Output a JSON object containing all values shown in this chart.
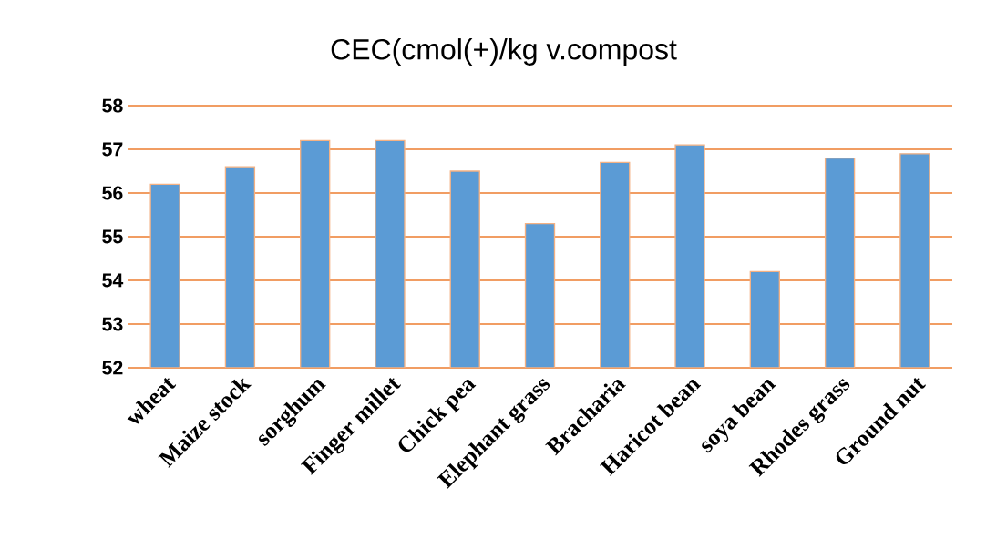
{
  "chart_data": {
    "type": "bar",
    "title": "CEC(cmol(+)/kg v.compost",
    "categories": [
      "wheat",
      "Maize stock",
      "sorghum",
      "Finger millet",
      "Chick pea",
      "Elephant grass",
      "Bracharia",
      "Haricot bean",
      "soya bean",
      "Rhodes grass",
      "Ground nut"
    ],
    "values": [
      56.2,
      56.6,
      57.2,
      57.2,
      56.5,
      55.3,
      56.7,
      57.1,
      54.2,
      56.8,
      56.9
    ],
    "color": "#5b9bd5",
    "ylim": [
      52,
      58
    ],
    "yticks": [
      52,
      53,
      54,
      55,
      56,
      57,
      58
    ],
    "grid": "y"
  }
}
